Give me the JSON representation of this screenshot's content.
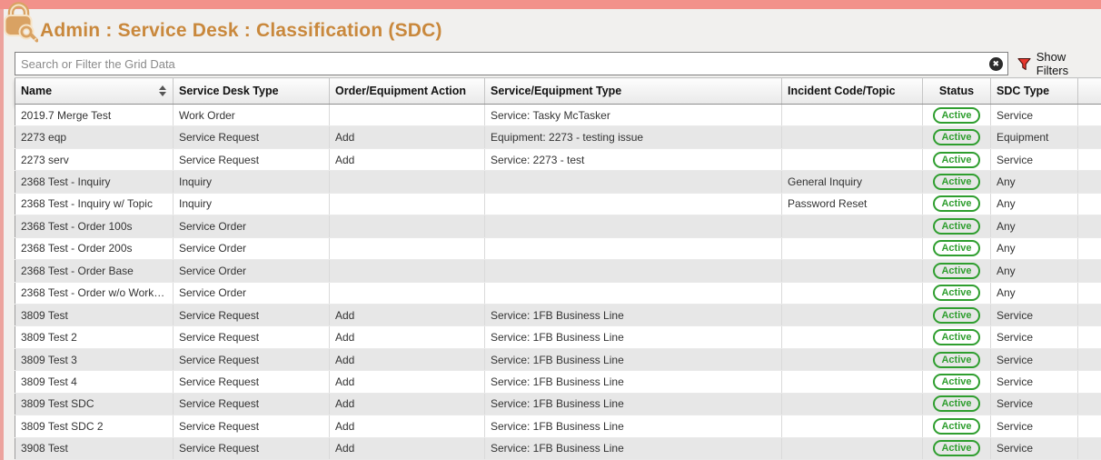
{
  "colors": {
    "top_bar": "#f2918a",
    "title_text": "#c9883c",
    "active_badge_green": "#2f9e2f",
    "filter_icon_red": "#e8372c",
    "zebra_row_gray": "#e7e7e7"
  },
  "header": {
    "title": "Admin : Service Desk : Classification (SDC)",
    "logo_icon": "lock-and-key-icon"
  },
  "search": {
    "placeholder": "Search or Filter the Grid Data",
    "value": "",
    "clear_icon": "circle-x-icon",
    "filter_icon": "funnel-icon",
    "show_filters_label": "Show Filters"
  },
  "table": {
    "columns": [
      {
        "label": "Name",
        "sortable": true
      },
      {
        "label": "Service Desk Type"
      },
      {
        "label": "Order/Equipment Action"
      },
      {
        "label": "Service/Equipment Type"
      },
      {
        "label": "Incident Code/Topic"
      },
      {
        "label": "Status"
      },
      {
        "label": "SDC Type"
      }
    ],
    "rows": [
      {
        "name": "2019.7 Merge Test",
        "service_desk_type": "Work Order",
        "order_equipment_action": "",
        "service_equipment_type": "Service: Tasky McTasker",
        "incident_code_topic": "",
        "status": "Active",
        "sdc_type": "Service"
      },
      {
        "name": "2273 eqp",
        "service_desk_type": "Service Request",
        "order_equipment_action": "Add",
        "service_equipment_type": "Equipment: 2273 - testing issue",
        "incident_code_topic": "",
        "status": "Active",
        "sdc_type": "Equipment"
      },
      {
        "name": "2273 serv",
        "service_desk_type": "Service Request",
        "order_equipment_action": "Add",
        "service_equipment_type": "Service: 2273 - test",
        "incident_code_topic": "",
        "status": "Active",
        "sdc_type": "Service"
      },
      {
        "name": "2368 Test - Inquiry",
        "service_desk_type": "Inquiry",
        "order_equipment_action": "",
        "service_equipment_type": "",
        "incident_code_topic": "General Inquiry",
        "status": "Active",
        "sdc_type": "Any"
      },
      {
        "name": "2368 Test - Inquiry w/ Topic",
        "service_desk_type": "Inquiry",
        "order_equipment_action": "",
        "service_equipment_type": "",
        "incident_code_topic": "Password Reset",
        "status": "Active",
        "sdc_type": "Any"
      },
      {
        "name": "2368 Test - Order 100s",
        "service_desk_type": "Service Order",
        "order_equipment_action": "",
        "service_equipment_type": "",
        "incident_code_topic": "",
        "status": "Active",
        "sdc_type": "Any"
      },
      {
        "name": "2368 Test - Order 200s",
        "service_desk_type": "Service Order",
        "order_equipment_action": "",
        "service_equipment_type": "",
        "incident_code_topic": "",
        "status": "Active",
        "sdc_type": "Any"
      },
      {
        "name": "2368 Test - Order Base",
        "service_desk_type": "Service Order",
        "order_equipment_action": "",
        "service_equipment_type": "",
        "incident_code_topic": "",
        "status": "Active",
        "sdc_type": "Any"
      },
      {
        "name": "2368 Test - Order w/o Workfl...",
        "service_desk_type": "Service Order",
        "order_equipment_action": "",
        "service_equipment_type": "",
        "incident_code_topic": "",
        "status": "Active",
        "sdc_type": "Any"
      },
      {
        "name": "3809 Test",
        "service_desk_type": "Service Request",
        "order_equipment_action": "Add",
        "service_equipment_type": "Service: 1FB Business Line",
        "incident_code_topic": "",
        "status": "Active",
        "sdc_type": "Service"
      },
      {
        "name": "3809 Test 2",
        "service_desk_type": "Service Request",
        "order_equipment_action": "Add",
        "service_equipment_type": "Service: 1FB Business Line",
        "incident_code_topic": "",
        "status": "Active",
        "sdc_type": "Service"
      },
      {
        "name": "3809 Test 3",
        "service_desk_type": "Service Request",
        "order_equipment_action": "Add",
        "service_equipment_type": "Service: 1FB Business Line",
        "incident_code_topic": "",
        "status": "Active",
        "sdc_type": "Service"
      },
      {
        "name": "3809 Test 4",
        "service_desk_type": "Service Request",
        "order_equipment_action": "Add",
        "service_equipment_type": "Service: 1FB Business Line",
        "incident_code_topic": "",
        "status": "Active",
        "sdc_type": "Service"
      },
      {
        "name": "3809 Test SDC",
        "service_desk_type": "Service Request",
        "order_equipment_action": "Add",
        "service_equipment_type": "Service: 1FB Business Line",
        "incident_code_topic": "",
        "status": "Active",
        "sdc_type": "Service"
      },
      {
        "name": "3809 Test SDC 2",
        "service_desk_type": "Service Request",
        "order_equipment_action": "Add",
        "service_equipment_type": "Service: 1FB Business Line",
        "incident_code_topic": "",
        "status": "Active",
        "sdc_type": "Service"
      },
      {
        "name": "3908 Test",
        "service_desk_type": "Service Request",
        "order_equipment_action": "Add",
        "service_equipment_type": "Service: 1FB Business Line",
        "incident_code_topic": "",
        "status": "Active",
        "sdc_type": "Service"
      }
    ]
  }
}
